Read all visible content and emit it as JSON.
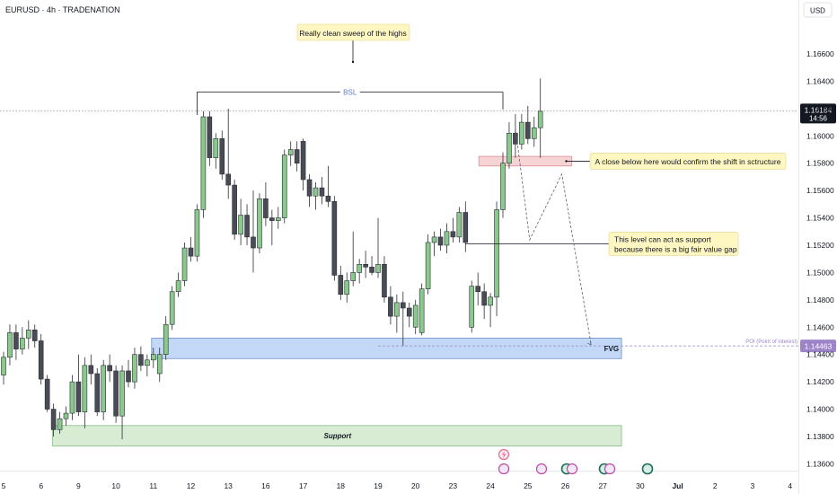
{
  "header": {
    "symbol": "EURUSD · 4h · TRADENATION",
    "currency": "USD"
  },
  "chart_data": {
    "type": "candlestick",
    "ylim": [
      1.1355,
      1.1685
    ],
    "y_ticks": [
      "1.16600",
      "1.16400",
      "1.16200",
      "1.16000",
      "1.15800",
      "1.15600",
      "1.15400",
      "1.15200",
      "1.15000",
      "1.14800",
      "1.14600",
      "1.14400",
      "1.14200",
      "1.14000",
      "1.13800",
      "1.13600"
    ],
    "x_ticks": [
      {
        "label": "5",
        "i": 0
      },
      {
        "label": "6",
        "i": 6
      },
      {
        "label": "9",
        "i": 12
      },
      {
        "label": "10",
        "i": 18
      },
      {
        "label": "11",
        "i": 24
      },
      {
        "label": "12",
        "i": 30
      },
      {
        "label": "13",
        "i": 36
      },
      {
        "label": "16",
        "i": 42
      },
      {
        "label": "17",
        "i": 48
      },
      {
        "label": "18",
        "i": 54
      },
      {
        "label": "19",
        "i": 60
      },
      {
        "label": "20",
        "i": 66
      },
      {
        "label": "23",
        "i": 72
      },
      {
        "label": "24",
        "i": 78
      },
      {
        "label": "25",
        "i": 84
      },
      {
        "label": "26",
        "i": 90
      },
      {
        "label": "27",
        "i": 96
      },
      {
        "label": "30",
        "i": 102
      },
      {
        "label": "Jul",
        "i": 108
      },
      {
        "label": "2",
        "i": 114
      },
      {
        "label": "3",
        "i": 120
      },
      {
        "label": "4",
        "i": 126
      }
    ],
    "candles": [
      [
        1.1425,
        1.1442,
        1.1418,
        1.1438
      ],
      [
        1.1438,
        1.1462,
        1.1432,
        1.1456
      ],
      [
        1.1456,
        1.1462,
        1.1436,
        1.1444
      ],
      [
        1.1444,
        1.146,
        1.144,
        1.1452
      ],
      [
        1.1452,
        1.1465,
        1.1444,
        1.1458
      ],
      [
        1.1458,
        1.1462,
        1.1445,
        1.145
      ],
      [
        1.145,
        1.1455,
        1.1418,
        1.1422
      ],
      [
        1.1422,
        1.1425,
        1.1398,
        1.14
      ],
      [
        1.14,
        1.1404,
        1.138,
        1.1385
      ],
      [
        1.1385,
        1.1398,
        1.1382,
        1.1393
      ],
      [
        1.1393,
        1.1402,
        1.1388,
        1.1397
      ],
      [
        1.1397,
        1.1425,
        1.1392,
        1.142
      ],
      [
        1.142,
        1.144,
        1.1395,
        1.1398
      ],
      [
        1.1398,
        1.1438,
        1.1386,
        1.1432
      ],
      [
        1.1432,
        1.144,
        1.1418,
        1.1426
      ],
      [
        1.1426,
        1.143,
        1.1395,
        1.1398
      ],
      [
        1.1398,
        1.1436,
        1.1392,
        1.1432
      ],
      [
        1.1432,
        1.144,
        1.142,
        1.1428
      ],
      [
        1.1428,
        1.1432,
        1.139,
        1.1395
      ],
      [
        1.1395,
        1.1432,
        1.1378,
        1.1428
      ],
      [
        1.1428,
        1.1436,
        1.1416,
        1.142
      ],
      [
        1.142,
        1.1445,
        1.1415,
        1.144
      ],
      [
        1.144,
        1.1446,
        1.1428,
        1.1432
      ],
      [
        1.1432,
        1.144,
        1.1424,
        1.1436
      ],
      [
        1.1436,
        1.1445,
        1.143,
        1.144
      ],
      [
        1.1426,
        1.1445,
        1.142,
        1.144
      ],
      [
        1.144,
        1.1468,
        1.1436,
        1.1462
      ],
      [
        1.1462,
        1.149,
        1.1458,
        1.1486
      ],
      [
        1.1486,
        1.15,
        1.1482,
        1.1494
      ],
      [
        1.1494,
        1.1522,
        1.149,
        1.1518
      ],
      [
        1.1518,
        1.1526,
        1.1508,
        1.1512
      ],
      [
        1.1512,
        1.155,
        1.1508,
        1.1546
      ],
      [
        1.1546,
        1.1618,
        1.154,
        1.1614
      ],
      [
        1.1614,
        1.1618,
        1.1578,
        1.1584
      ],
      [
        1.1584,
        1.1602,
        1.1576,
        1.1598
      ],
      [
        1.1598,
        1.1604,
        1.1568,
        1.1572
      ],
      [
        1.1572,
        1.162,
        1.1554,
        1.1564
      ],
      [
        1.1564,
        1.1568,
        1.1524,
        1.1528
      ],
      [
        1.1528,
        1.1554,
        1.152,
        1.1542
      ],
      [
        1.1542,
        1.155,
        1.152,
        1.1526
      ],
      [
        1.1526,
        1.156,
        1.15,
        1.1518
      ],
      [
        1.1518,
        1.1558,
        1.1514,
        1.1554
      ],
      [
        1.1554,
        1.1566,
        1.1534,
        1.154
      ],
      [
        1.154,
        1.1546,
        1.152,
        1.1538
      ],
      [
        1.1538,
        1.1548,
        1.1532,
        1.154
      ],
      [
        1.154,
        1.159,
        1.1536,
        1.1586
      ],
      [
        1.1586,
        1.1596,
        1.1578,
        1.159
      ],
      [
        1.159,
        1.1596,
        1.1574,
        1.158
      ],
      [
        1.1596,
        1.1598,
        1.156,
        1.1568
      ],
      [
        1.1568,
        1.1572,
        1.1548,
        1.1556
      ],
      [
        1.1556,
        1.1566,
        1.1546,
        1.1562
      ],
      [
        1.1562,
        1.157,
        1.155,
        1.1556
      ],
      [
        1.1556,
        1.1578,
        1.1548,
        1.1552
      ],
      [
        1.1552,
        1.1556,
        1.1494,
        1.1498
      ],
      [
        1.1498,
        1.1505,
        1.148,
        1.1484
      ],
      [
        1.1484,
        1.15,
        1.1478,
        1.1494
      ],
      [
        1.1494,
        1.153,
        1.149,
        1.15
      ],
      [
        1.15,
        1.151,
        1.1492,
        1.1506
      ],
      [
        1.1506,
        1.1516,
        1.1496,
        1.1504
      ],
      [
        1.1504,
        1.1512,
        1.1498,
        1.15
      ],
      [
        1.15,
        1.154,
        1.1496,
        1.1506
      ],
      [
        1.1506,
        1.1512,
        1.1478,
        1.1482
      ],
      [
        1.1482,
        1.149,
        1.1462,
        1.1468
      ],
      [
        1.1468,
        1.1484,
        1.1456,
        1.1478
      ],
      [
        1.1478,
        1.1486,
        1.1446,
        1.1474
      ],
      [
        1.1474,
        1.1478,
        1.146,
        1.1468
      ],
      [
        1.146,
        1.148,
        1.1455,
        1.1476
      ],
      [
        1.1456,
        1.1492,
        1.1454,
        1.1488
      ],
      [
        1.1488,
        1.1528,
        1.1484,
        1.1522
      ],
      [
        1.1522,
        1.153,
        1.1512,
        1.1526
      ],
      [
        1.1526,
        1.1532,
        1.1516,
        1.152
      ],
      [
        1.152,
        1.1536,
        1.1514,
        1.153
      ],
      [
        1.153,
        1.154,
        1.1522,
        1.1526
      ],
      [
        1.1526,
        1.1548,
        1.1522,
        1.1544
      ],
      [
        1.1544,
        1.1552,
        1.1515,
        1.1522
      ],
      [
        1.146,
        1.1494,
        1.1456,
        1.149
      ],
      [
        1.149,
        1.15,
        1.1476,
        1.1486
      ],
      [
        1.1486,
        1.1492,
        1.1466,
        1.1476
      ],
      [
        1.1476,
        1.1485,
        1.146,
        1.1482
      ],
      [
        1.1482,
        1.1552,
        1.1468,
        1.1546
      ],
      [
        1.1546,
        1.1588,
        1.154,
        1.158
      ],
      [
        1.158,
        1.161,
        1.1576,
        1.1602
      ],
      [
        1.1602,
        1.1616,
        1.1584,
        1.1594
      ],
      [
        1.1594,
        1.1616,
        1.159,
        1.161
      ],
      [
        1.161,
        1.1622,
        1.1594,
        1.1598
      ],
      [
        1.1598,
        1.1614,
        1.1592,
        1.1606
      ],
      [
        1.1606,
        1.1642,
        1.1584,
        1.1618
      ]
    ],
    "annotations": {
      "callout_sweep": "Really clean sweep of the highs",
      "bsl_label": "BSL",
      "callout_close": "A close below here would confirm the shift in sctructure",
      "callout_support_line1": "This level can act as support",
      "callout_support_line2": "because there is a big fair value gap",
      "fvg_label": "FVG",
      "support_label": "Support",
      "poi_label": "POI (Point of interest)"
    },
    "price_tags": {
      "current_price": "1.16184",
      "countdown": "14:56",
      "poi_price": "1.14463"
    },
    "zones": {
      "fvg": [
        1.1437,
        1.1452
      ],
      "support": [
        1.1373,
        1.1388
      ],
      "confirm_box": [
        1.1578,
        1.1585
      ]
    },
    "levels": {
      "bsl": 1.1632,
      "current": 1.16184,
      "support_line": 1.1521,
      "poi": 1.14463
    },
    "projection": [
      [
        1.1606,
        1.1606
      ],
      [
        1.1524,
        1.1524
      ],
      [
        1.1572,
        1.1572
      ],
      [
        1.1447,
        1.1447
      ]
    ],
    "colors": {
      "bull": "#89c98b",
      "bear": "#4a4c55",
      "fvg_fill": "#c2d8f6",
      "fvg_border": "#6f8fc6",
      "support_fill": "#d7ecd3",
      "support_border": "#8bb98a",
      "confirm_fill": "#f6d3d5",
      "confirm_border": "#dd8c93",
      "callout_fill": "#fff7c2",
      "poi": "#9d84c9",
      "price_tag": "#131722"
    }
  }
}
